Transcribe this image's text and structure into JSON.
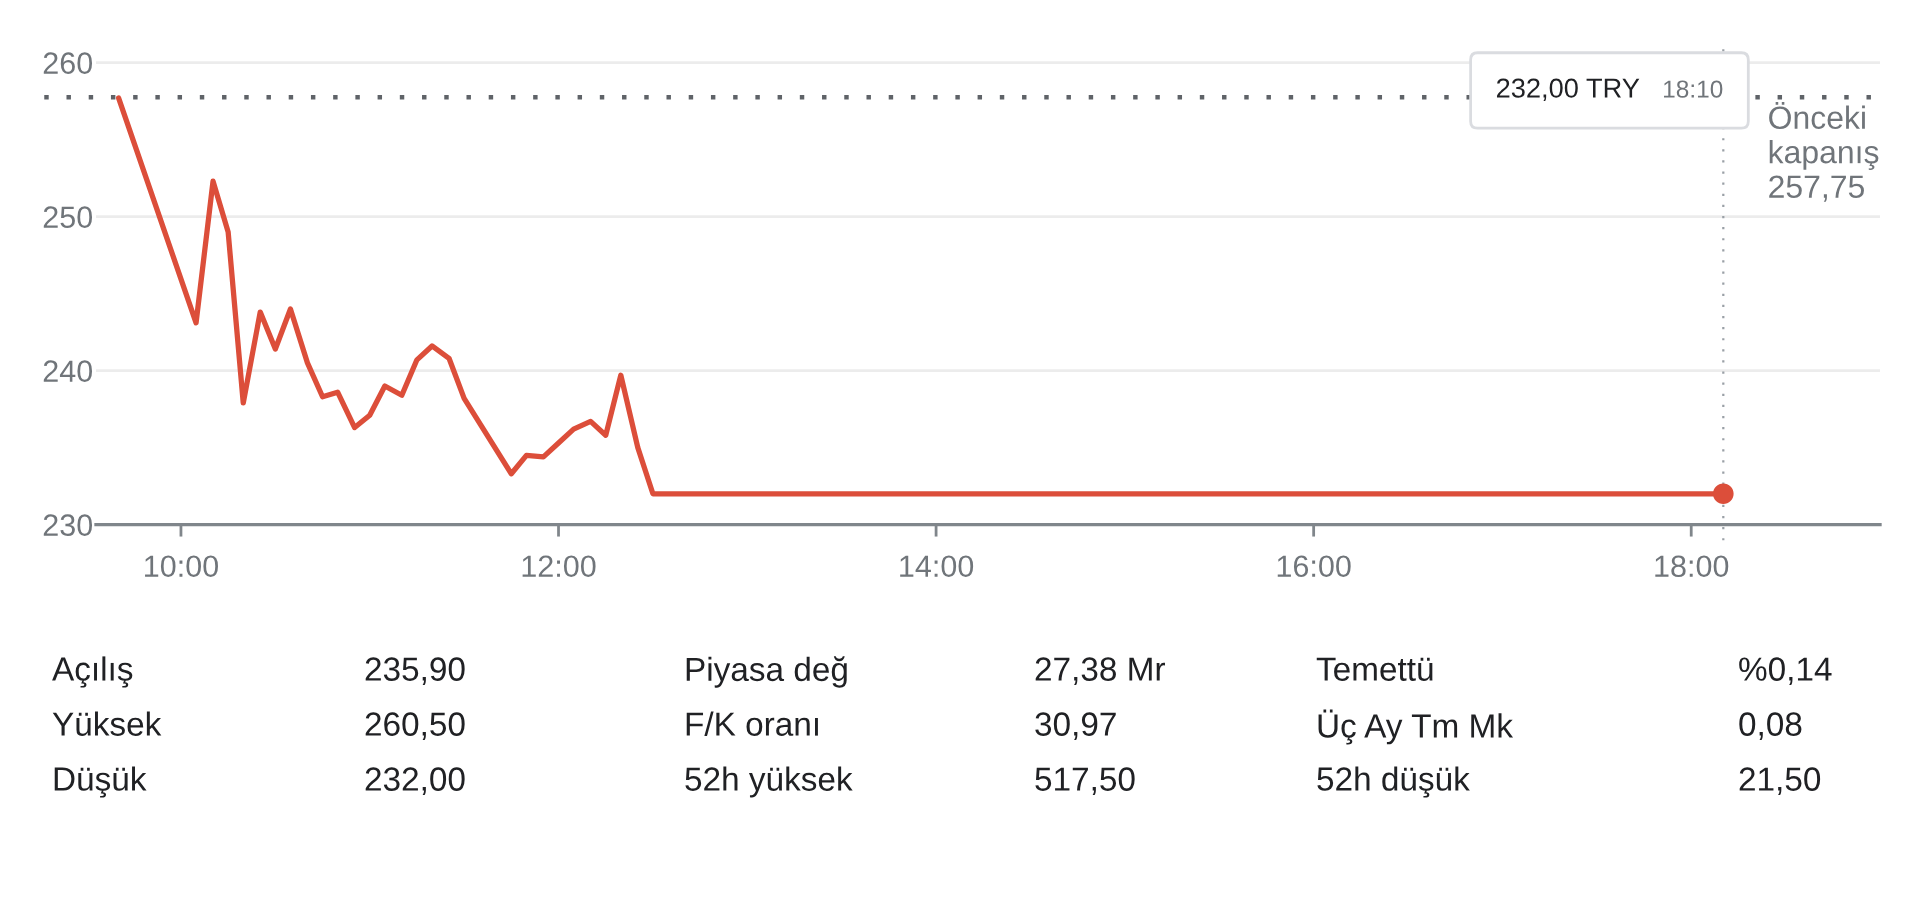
{
  "chart_data": [
    {
      "type": "line",
      "x": [
        9.67,
        10.08,
        10.17,
        10.25,
        10.33,
        10.42,
        10.5,
        10.58,
        10.67,
        10.75,
        10.83,
        10.92,
        11.0,
        11.08,
        11.17,
        11.25,
        11.33,
        11.42,
        11.5,
        11.75,
        11.83,
        11.92,
        12.0,
        12.08,
        12.17,
        12.25,
        12.33,
        12.42,
        12.5,
        18.17
      ],
      "series": [
        {
          "color": "#dc4e3a",
          "values": [
            257.7,
            243.1,
            252.3,
            249.0,
            237.9,
            243.8,
            241.4,
            244.0,
            240.5,
            238.3,
            238.6,
            236.3,
            237.1,
            239.0,
            238.4,
            240.7,
            241.6,
            240.8,
            238.2,
            233.3,
            234.5,
            234.4,
            235.3,
            236.2,
            236.7,
            235.8,
            239.7,
            235.0,
            232.0,
            232.0
          ]
        },
        {
          "type": "scatter",
          "marker": "circle",
          "color": "#dc4e3a",
          "x": [
            18.17
          ],
          "values": [
            232.0
          ]
        }
      ],
      "xlim": [
        9.55,
        19.0
      ],
      "ylim": [
        230,
        261
      ],
      "xticks": [
        {
          "value": 10,
          "label": "10:00"
        },
        {
          "value": 12,
          "label": "12:00"
        },
        {
          "value": 14,
          "label": "14:00"
        },
        {
          "value": 16,
          "label": "16:00"
        },
        {
          "value": 18,
          "label": "18:00"
        }
      ],
      "yticks": [
        230,
        240,
        250,
        260
      ],
      "grid": "y",
      "ref_lines": [
        {
          "axis": "y",
          "value": 257.75,
          "label": "Önceki\nkapanış\n257,75",
          "color": "#5f6368",
          "line_style": "dotted"
        },
        {
          "axis": "x",
          "value": 18.17,
          "color": "#9aa0a6",
          "line_style": "dotted"
        }
      ],
      "annotations": [
        "232,00 TRY",
        "18:10"
      ]
    },
    {
      "type": "other",
      "annotations": [
        "Açılış",
        "235,90",
        "Piyasa değ",
        "27,38 Mr",
        "Temettü",
        "%0,14",
        "Yüksek",
        "260,50",
        "F/K oranı",
        "30,97",
        "Üç Ay Tm Mk",
        "0,08",
        "Düşük",
        "232,00",
        "52h yüksek",
        "517,50",
        "52h düşük",
        "21,50"
      ]
    }
  ]
}
